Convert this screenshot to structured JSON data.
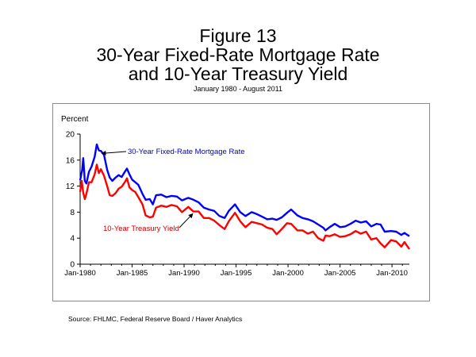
{
  "figure": {
    "title_line1": "Figure 13",
    "title_line2": "30-Year Fixed-Rate Mortgage Rate",
    "title_line3": "and 10-Year Treasury Yield",
    "subtitle": "January 1980 - August 2011",
    "source": "Source:  FHLMC, Federal Reserve Board / Haver Analytics"
  },
  "chart_data": {
    "type": "line",
    "title": "",
    "ylabel": "Percent",
    "xlabel": "",
    "ylim": [
      0,
      20
    ],
    "xlim": [
      1980.0,
      2011.67
    ],
    "yticks": [
      0,
      4,
      8,
      12,
      16,
      20
    ],
    "xticks": [
      {
        "value": 1980,
        "label": "Jan-1980"
      },
      {
        "value": 1985,
        "label": "Jan-1985"
      },
      {
        "value": 1990,
        "label": "Jan-1990"
      },
      {
        "value": 1995,
        "label": "Jan-1995"
      },
      {
        "value": 2000,
        "label": "Jan-2000"
      },
      {
        "value": 2005,
        "label": "Jan-2005"
      },
      {
        "value": 2010,
        "label": "Jan-2010"
      }
    ],
    "grid": false,
    "series": [
      {
        "name": "30-Year Fixed-Rate Mortgage Rate",
        "color": "#0000ff",
        "x": [
          1980.0,
          1980.2,
          1980.3,
          1980.45,
          1980.6,
          1980.85,
          1981.1,
          1981.4,
          1981.6,
          1981.8,
          1982.0,
          1982.3,
          1982.6,
          1982.85,
          1983.1,
          1983.4,
          1983.7,
          1984.0,
          1984.3,
          1984.5,
          1984.75,
          1985.0,
          1985.3,
          1985.6,
          1986.0,
          1986.3,
          1986.7,
          1987.0,
          1987.3,
          1987.8,
          1988.3,
          1988.8,
          1989.3,
          1989.8,
          1990.4,
          1990.9,
          1991.4,
          1991.9,
          1992.4,
          1992.9,
          1993.4,
          1993.9,
          1994.3,
          1994.9,
          1995.4,
          1995.9,
          1996.5,
          1997.0,
          1997.5,
          1998.0,
          1998.5,
          1998.9,
          1999.4,
          1999.9,
          2000.3,
          2000.9,
          2001.4,
          2001.9,
          2002.4,
          2002.9,
          2003.4,
          2003.6,
          2004.0,
          2004.5,
          2005.0,
          2005.5,
          2006.0,
          2006.5,
          2007.0,
          2007.5,
          2008.0,
          2008.5,
          2008.9,
          2009.3,
          2009.9,
          2010.4,
          2010.9,
          2011.2,
          2011.67
        ],
        "values": [
          12.9,
          14.5,
          16.3,
          12.8,
          12.4,
          14.2,
          15.0,
          16.5,
          18.4,
          17.5,
          17.4,
          16.8,
          14.5,
          13.3,
          12.8,
          13.3,
          13.7,
          13.4,
          14.2,
          14.7,
          13.8,
          13.0,
          12.6,
          12.2,
          10.8,
          9.9,
          10.0,
          9.2,
          10.6,
          10.7,
          10.3,
          10.5,
          10.4,
          9.8,
          10.2,
          9.9,
          9.5,
          8.7,
          8.4,
          8.2,
          7.4,
          7.1,
          8.2,
          9.2,
          8.0,
          7.4,
          8.0,
          7.7,
          7.3,
          6.9,
          7.0,
          6.8,
          7.2,
          7.9,
          8.4,
          7.5,
          7.1,
          6.9,
          6.6,
          6.1,
          5.6,
          5.2,
          5.7,
          6.2,
          5.7,
          5.8,
          6.2,
          6.7,
          6.4,
          6.6,
          5.8,
          6.2,
          6.1,
          5.0,
          5.1,
          5.0,
          4.5,
          4.8,
          4.3
        ]
      },
      {
        "name": "10-Year Treasury Yield",
        "color": "#ff0000",
        "x": [
          1980.0,
          1980.15,
          1980.3,
          1980.45,
          1980.6,
          1980.85,
          1981.1,
          1981.4,
          1981.6,
          1981.8,
          1982.0,
          1982.3,
          1982.6,
          1982.85,
          1983.1,
          1983.4,
          1983.7,
          1984.0,
          1984.3,
          1984.5,
          1984.75,
          1985.0,
          1985.3,
          1985.6,
          1986.0,
          1986.3,
          1986.7,
          1987.0,
          1987.3,
          1987.8,
          1988.3,
          1988.8,
          1989.3,
          1989.8,
          1990.4,
          1990.9,
          1991.4,
          1991.9,
          1992.4,
          1992.9,
          1993.4,
          1993.9,
          1994.3,
          1994.9,
          1995.4,
          1995.9,
          1996.5,
          1997.0,
          1997.5,
          1998.0,
          1998.5,
          1998.9,
          1999.4,
          1999.9,
          2000.3,
          2000.9,
          2001.4,
          2001.9,
          2002.4,
          2002.9,
          2003.4,
          2003.6,
          2004.0,
          2004.5,
          2005.0,
          2005.5,
          2006.0,
          2006.5,
          2007.0,
          2007.5,
          2008.0,
          2008.5,
          2008.9,
          2009.3,
          2009.9,
          2010.4,
          2010.9,
          2011.2,
          2011.67
        ],
        "values": [
          11.1,
          12.8,
          11.0,
          10.0,
          10.8,
          12.6,
          12.6,
          13.8,
          15.3,
          14.0,
          14.6,
          13.6,
          12.0,
          10.6,
          10.5,
          10.9,
          11.6,
          11.9,
          12.6,
          13.2,
          11.8,
          11.4,
          11.1,
          10.3,
          9.2,
          7.5,
          7.2,
          7.3,
          8.7,
          9.0,
          8.8,
          9.1,
          8.9,
          8.0,
          8.8,
          8.1,
          8.1,
          7.1,
          7.1,
          6.7,
          6.0,
          5.4,
          6.6,
          7.9,
          6.6,
          5.7,
          6.5,
          6.3,
          6.1,
          5.6,
          5.4,
          4.6,
          5.4,
          6.3,
          6.2,
          5.2,
          5.2,
          4.7,
          5.0,
          4.0,
          3.6,
          4.4,
          4.3,
          4.6,
          4.2,
          4.3,
          4.6,
          5.1,
          4.7,
          5.0,
          3.8,
          4.0,
          3.2,
          2.6,
          3.7,
          3.5,
          2.7,
          3.4,
          2.3
        ]
      }
    ],
    "annotations": [
      {
        "text": "30-Year Fixed-Rate Mortgage Rate",
        "color": "#0000cc",
        "series": 0
      },
      {
        "text": "10-Year Treasury Yield",
        "color": "#cc0000",
        "series": 1
      }
    ]
  }
}
